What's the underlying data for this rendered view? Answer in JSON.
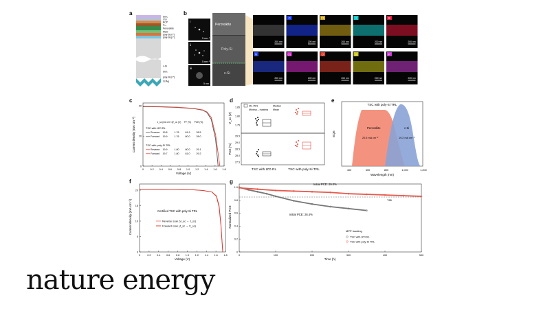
{
  "brand": "nature energy",
  "panel_letters": {
    "a": "a",
    "b": "b",
    "c": "c",
    "d": "d",
    "e": "e",
    "f": "f",
    "g": "g"
  },
  "panel_a": {
    "layers": [
      "SiO₂",
      "ITO",
      "BCP",
      "C₆₀",
      "Perovskite",
      "MeO",
      "poly-Si (n⁺)",
      "poly-Si (p⁺)",
      "c-Si",
      "SiOₓ",
      "poly-Si (n⁺)",
      "Cr/Ag"
    ]
  },
  "panel_b": {
    "sem_labels": [
      "Perovskite",
      "Poly-Si",
      "c-Si"
    ],
    "inset_labels": [
      "i",
      "ii",
      "iii"
    ],
    "inset_scales": [
      "5 nm⁻¹",
      "5 nm⁻¹",
      "5 nm"
    ],
    "eds_scale": "200 nm",
    "eds_row1": [
      "",
      "O",
      "Pb",
      "I",
      "Br"
    ],
    "eds_row2": [
      "N",
      "Cs",
      "Cl",
      "Si",
      "P"
    ],
    "colors_row1": [
      "#5a5a5a",
      "#1b3cf0",
      "#c9a51a",
      "#16c7c7",
      "#e0163a"
    ],
    "colors_row2": [
      "#2a44e0",
      "#d12ac9",
      "#d83a2a",
      "#c9c21a",
      "#c63ad0"
    ]
  },
  "panel_c": {
    "ylabel": "Current density (mA cm⁻²)",
    "xlabel": "Voltage (V)",
    "table_header": [
      "J_sc (mA cm⁻²)",
      "V_oc (V)",
      "FF (%)",
      "PCE (%)"
    ],
    "group1": "TSC with IZO RL",
    "group1_rows": [
      [
        "Reverse",
        "19.8",
        "1.76",
        "81.9",
        "28.5"
      ],
      [
        "Forward",
        "19.9",
        "1.76",
        "80.0",
        "28.0"
      ]
    ],
    "group2": "TSC with poly-Si TRL",
    "group2_rows": [
      [
        "Reverse",
        "19.9",
        "1.80",
        "80.0",
        "29.1"
      ],
      [
        "Forward",
        "19.7",
        "1.80",
        "81.0",
        "29.2"
      ]
    ]
  },
  "panel_d": {
    "legend": [
      "25–75%",
      "Median",
      "Minima – maxima",
      "Mean"
    ],
    "ylabel_top": "V_oc (V)",
    "ylabel_bottom": "PCE (%)",
    "ticks_top": [
      "1.85",
      "1.80",
      "1.75"
    ],
    "ticks_bottom": [
      "29.5",
      "29.0",
      "28.5",
      "28.0",
      "27.5"
    ],
    "xcats": [
      "TSC with IZO RL",
      "TSC with poly-Si TRL"
    ]
  },
  "panel_e": {
    "title": "TSC with poly-Si TRL",
    "ylabel": "EQE",
    "xlabel": "Wavelength (nm)",
    "series": [
      {
        "name": "Perovskite",
        "label": "20.5 mA cm⁻²",
        "color": "#f28a74"
      },
      {
        "name": "c-Si",
        "label": "19.2 mA cm⁻²",
        "color": "#8aa3d6"
      }
    ],
    "xticks": [
      "400",
      "600",
      "800",
      "1,000",
      "1,200"
    ]
  },
  "panel_f": {
    "ylabel": "Current density (mA cm⁻²)",
    "xlabel": "Voltage (V)",
    "caption": "Certified TSC with poly-Si TRL",
    "legend": [
      "Reverse scan (V_oc → J_sc)",
      "Forward scan (J_sc → V_oc)"
    ],
    "xticks": [
      "0",
      "0.2",
      "0.4",
      "0.6",
      "0.8",
      "1.0",
      "1.2",
      "1.4",
      "1.6",
      "1.8"
    ],
    "yticks": [
      "0",
      "5",
      "10",
      "15",
      "20"
    ]
  },
  "panel_g": {
    "ylabel": "Normalized PCE",
    "xlabel": "Time (h)",
    "annotations": [
      "Initial PCE: 29.0%",
      "Initial PCE: 28.4%",
      "T85"
    ],
    "legend_title": "MPP tracking",
    "legend": [
      "TSC with IZO RL",
      "TSC with poly-Si TRL"
    ],
    "xticks": [
      "0",
      "100",
      "200",
      "300",
      "400",
      "500"
    ],
    "yticks": [
      "0",
      "0.2",
      "0.4",
      "0.6",
      "0.8",
      "1.0"
    ]
  },
  "chart_data": [
    {
      "type": "line",
      "title": "",
      "xlabel": "Voltage (V)",
      "ylabel": "Current density (mA cm⁻²)",
      "xlim": [
        0,
        1.9
      ],
      "ylim": [
        0,
        21
      ],
      "series": [
        {
          "name": "Reverse",
          "color": "#555555",
          "x": [
            0,
            0.4,
            0.8,
            1.2,
            1.4,
            1.5,
            1.6,
            1.7,
            1.76
          ],
          "y": [
            19.8,
            19.7,
            19.5,
            19.1,
            18.6,
            17.8,
            15.5,
            9,
            0
          ]
        },
        {
          "name": "Reverse",
          "color": "#e34a3c",
          "x": [
            0,
            0.4,
            0.8,
            1.2,
            1.4,
            1.5,
            1.6,
            1.7,
            1.8
          ],
          "y": [
            19.9,
            19.8,
            19.6,
            19.2,
            18.7,
            18.0,
            16.2,
            10.5,
            0
          ]
        }
      ]
    },
    {
      "type": "line",
      "title": "",
      "xlabel": "Voltage (V)",
      "ylabel": "Current density (mA cm⁻²)",
      "xlim": [
        0,
        1.9
      ],
      "ylim": [
        0,
        22
      ],
      "series": [
        {
          "name": "Reverse scan",
          "color": "#f08070",
          "x": [
            0,
            0.4,
            0.8,
            1.2,
            1.4,
            1.6,
            1.7,
            1.76,
            1.8,
            1.84
          ],
          "y": [
            20.3,
            20.3,
            20.2,
            20.1,
            19.9,
            19.4,
            18.2,
            15.0,
            9.0,
            0
          ]
        },
        {
          "name": "Forward scan",
          "color": "#d8302a",
          "x": [
            0,
            0.4,
            0.8,
            1.2,
            1.4,
            1.6,
            1.7,
            1.76,
            1.8,
            1.84
          ],
          "y": [
            20.3,
            20.3,
            20.2,
            20.1,
            19.9,
            19.4,
            18.0,
            14.5,
            8.5,
            0
          ]
        }
      ]
    },
    {
      "type": "line",
      "title": "",
      "xlabel": "Time (h)",
      "ylabel": "Normalized PCE",
      "xlim": [
        0,
        500
      ],
      "ylim": [
        0,
        1.05
      ],
      "series": [
        {
          "name": "TSC with IZO RL",
          "color": "#777777",
          "x": [
            0,
            25,
            50,
            75,
            100,
            150,
            200,
            250,
            300,
            350
          ],
          "y": [
            1.0,
            0.96,
            0.93,
            0.9,
            0.86,
            0.79,
            0.74,
            0.7,
            0.67,
            0.64
          ]
        },
        {
          "name": "TSC with poly-Si TRL",
          "color": "#e8584a",
          "x": [
            0,
            50,
            100,
            150,
            200,
            250,
            300,
            350,
            400,
            450,
            500
          ],
          "y": [
            0.99,
            0.97,
            0.95,
            0.94,
            0.93,
            0.92,
            0.9,
            0.89,
            0.88,
            0.87,
            0.86
          ]
        }
      ]
    }
  ]
}
